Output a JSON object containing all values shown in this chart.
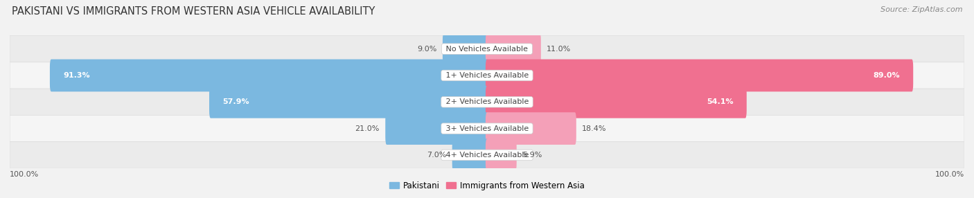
{
  "title": "PAKISTANI VS IMMIGRANTS FROM WESTERN ASIA VEHICLE AVAILABILITY",
  "source": "Source: ZipAtlas.com",
  "categories": [
    "No Vehicles Available",
    "1+ Vehicles Available",
    "2+ Vehicles Available",
    "3+ Vehicles Available",
    "4+ Vehicles Available"
  ],
  "pakistani": [
    9.0,
    91.3,
    57.9,
    21.0,
    7.0
  ],
  "western_asia": [
    11.0,
    89.0,
    54.1,
    18.4,
    5.9
  ],
  "pakistani_color": "#7BB8E0",
  "western_asia_color": "#F07090",
  "western_asia_color_light": "#F4A0B8",
  "background_color": "#F2F2F2",
  "row_color_light": "#EFEFEF",
  "row_color_dark": "#E4E4E4",
  "label_pakistani": "Pakistani",
  "label_western_asia": "Immigrants from Western Asia",
  "max_value": 100.0,
  "bar_height": 0.62,
  "title_fontsize": 10.5,
  "source_fontsize": 8,
  "value_fontsize": 8,
  "cat_fontsize": 8,
  "axis_label_fontsize": 8,
  "legend_fontsize": 8.5
}
